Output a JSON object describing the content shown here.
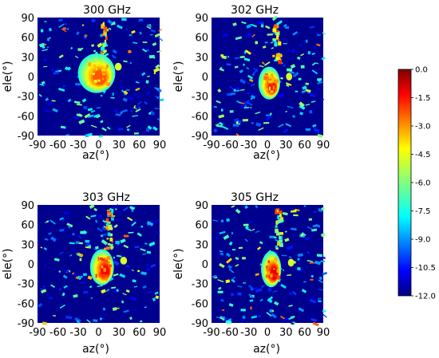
{
  "chart_data": {
    "type": "heatmap",
    "panels": [
      {
        "title": "300 GHz",
        "xlabel": "az(°)",
        "ylabel": "ele(°)"
      },
      {
        "title": "302 GHz",
        "xlabel": "az(°)",
        "ylabel": "ele(°)"
      },
      {
        "title": "303 GHz",
        "xlabel": "az(°)",
        "ylabel": "ele(°)"
      },
      {
        "title": "305 GHz",
        "xlabel": "az(°)",
        "ylabel": "ele(°)"
      }
    ],
    "x_ticks": [
      "-90",
      "-60",
      "-30",
      "0",
      "30",
      "60",
      "90"
    ],
    "y_ticks": [
      "90",
      "60",
      "30",
      "0",
      "-30",
      "-60",
      "-90"
    ],
    "xlim": [
      -90,
      90
    ],
    "ylim": [
      -90,
      90
    ],
    "colorbar": {
      "ticks": [
        "0.0",
        "-1.5",
        "-3.0",
        "-4.5",
        "-6.0",
        "-7.5",
        "-9.0",
        "-10.5",
        "-12.0"
      ],
      "range": [
        -12.0,
        0.0
      ],
      "colormap": "jet"
    },
    "blobs": [
      {
        "az": -3,
        "ele": 5,
        "peak": -2.5,
        "sx": 22,
        "sy": 24
      },
      {
        "az": 3,
        "ele": -10,
        "peak": -1.8,
        "sx": 14,
        "sy": 20
      },
      {
        "az": 5,
        "ele": -5,
        "peak": -1.5,
        "sx": 14,
        "sy": 22
      },
      {
        "az": 6,
        "ele": -8,
        "peak": -1.2,
        "sx": 13,
        "sy": 22
      }
    ]
  }
}
